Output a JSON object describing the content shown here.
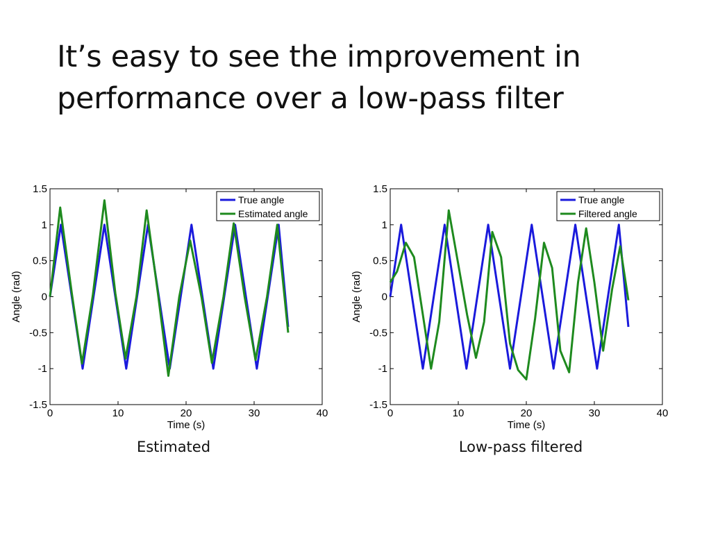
{
  "slide": {
    "title_lines": [
      "It’s easy to see the improvement in",
      "performance over a low-pass filter"
    ],
    "captions": [
      "Estimated",
      "Low-pass filtered"
    ]
  },
  "colors": {
    "true": "#1a1adc",
    "estimate": "#1e8a1e",
    "axis": "#000000"
  },
  "chart_data": [
    {
      "type": "line",
      "xlabel": "Time (s)",
      "ylabel": "Angle (rad)",
      "xlim": [
        0,
        40
      ],
      "ylim": [
        -1.5,
        1.5
      ],
      "xticks": [
        0,
        10,
        20,
        30,
        40
      ],
      "yticks": [
        -1.5,
        -1,
        -0.5,
        0,
        0.5,
        1,
        1.5
      ],
      "legend_position": "top-right",
      "series": [
        {
          "name": "True angle",
          "x": [
            0,
            1.6,
            3.2,
            4.8,
            6.4,
            8.0,
            9.6,
            11.2,
            12.8,
            14.4,
            16.0,
            17.6,
            19.2,
            20.8,
            22.4,
            24.0,
            25.6,
            27.2,
            28.8,
            30.4,
            32.0,
            33.6,
            35.0
          ],
          "y": [
            0.0,
            1.0,
            0.0,
            -1.0,
            0.0,
            1.0,
            0.0,
            -1.0,
            0.0,
            1.0,
            0.0,
            -1.0,
            0.0,
            1.0,
            0.0,
            -1.0,
            0.0,
            1.0,
            0.0,
            -1.0,
            0.0,
            1.0,
            -0.42
          ]
        },
        {
          "name": "Estimated angle",
          "x": [
            0,
            1.5,
            3.2,
            4.7,
            6.3,
            8.0,
            9.6,
            11.1,
            12.7,
            14.2,
            15.9,
            17.4,
            19.0,
            20.6,
            22.3,
            23.8,
            25.5,
            27.0,
            28.6,
            30.2,
            31.9,
            33.4,
            35.0
          ],
          "y": [
            0.0,
            1.24,
            0.05,
            -0.93,
            0.02,
            1.34,
            0.05,
            -0.86,
            0.0,
            1.2,
            0.02,
            -1.1,
            0.0,
            0.78,
            -0.02,
            -0.92,
            0.0,
            1.02,
            0.0,
            -0.88,
            0.0,
            1.0,
            -0.5
          ]
        }
      ]
    },
    {
      "type": "line",
      "xlabel": "Time (s)",
      "ylabel": "Angle (rad)",
      "xlim": [
        0,
        40
      ],
      "ylim": [
        -1.5,
        1.5
      ],
      "xticks": [
        0,
        10,
        20,
        30,
        40
      ],
      "yticks": [
        -1.5,
        -1,
        -0.5,
        0,
        0.5,
        1,
        1.5
      ],
      "legend_position": "top-right",
      "series": [
        {
          "name": "True angle",
          "x": [
            0,
            1.6,
            3.2,
            4.8,
            6.4,
            8.0,
            9.6,
            11.2,
            12.8,
            14.4,
            16.0,
            17.6,
            19.2,
            20.8,
            22.4,
            24.0,
            25.6,
            27.2,
            28.8,
            30.4,
            32.0,
            33.6,
            35.0
          ],
          "y": [
            0.0,
            1.0,
            0.0,
            -1.0,
            0.0,
            1.0,
            0.0,
            -1.0,
            0.0,
            1.0,
            0.0,
            -1.0,
            0.0,
            1.0,
            0.0,
            -1.0,
            0.0,
            1.0,
            0.0,
            -1.0,
            0.0,
            1.0,
            -0.42
          ]
        },
        {
          "name": "Filtered angle",
          "x": [
            0,
            1.0,
            2.3,
            3.5,
            4.8,
            6.0,
            7.2,
            8.6,
            10.0,
            11.3,
            12.6,
            13.8,
            15.0,
            16.3,
            17.6,
            18.8,
            20.0,
            21.3,
            22.6,
            23.8,
            25.0,
            26.3,
            27.6,
            28.8,
            30.0,
            31.3,
            32.6,
            33.8,
            35.0
          ],
          "y": [
            0.2,
            0.35,
            0.75,
            0.55,
            -0.25,
            -1.0,
            -0.35,
            1.2,
            0.45,
            -0.25,
            -0.85,
            -0.35,
            0.9,
            0.55,
            -0.65,
            -1.02,
            -1.15,
            -0.3,
            0.75,
            0.4,
            -0.75,
            -1.05,
            0.2,
            0.95,
            0.2,
            -0.75,
            0.1,
            0.7,
            -0.05
          ]
        }
      ]
    }
  ]
}
